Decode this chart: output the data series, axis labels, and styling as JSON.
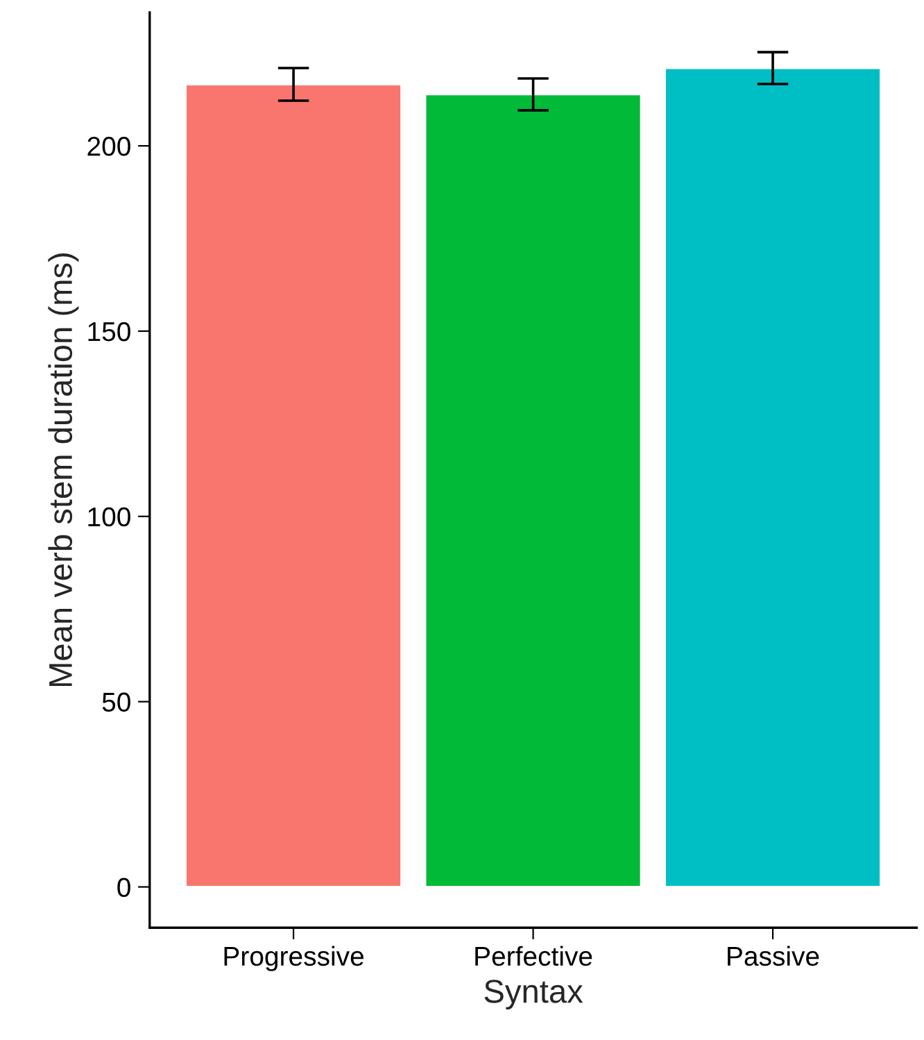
{
  "chart_data": {
    "type": "bar",
    "xlabel": "Syntax",
    "ylabel": "Mean verb stem duration (ms)",
    "categories": [
      "Progressive",
      "Perfective",
      "Passive"
    ],
    "values": [
      216.6,
      213.9,
      221
    ],
    "colors": [
      "#f8766d",
      "#00ba38",
      "#00bfc4"
    ],
    "errors": [
      4.4,
      4.3,
      4.3
    ],
    "ylim": [
      -11,
      236
    ],
    "yticks": [
      0,
      50,
      100,
      150,
      200
    ],
    "grid": false,
    "legend": false
  }
}
